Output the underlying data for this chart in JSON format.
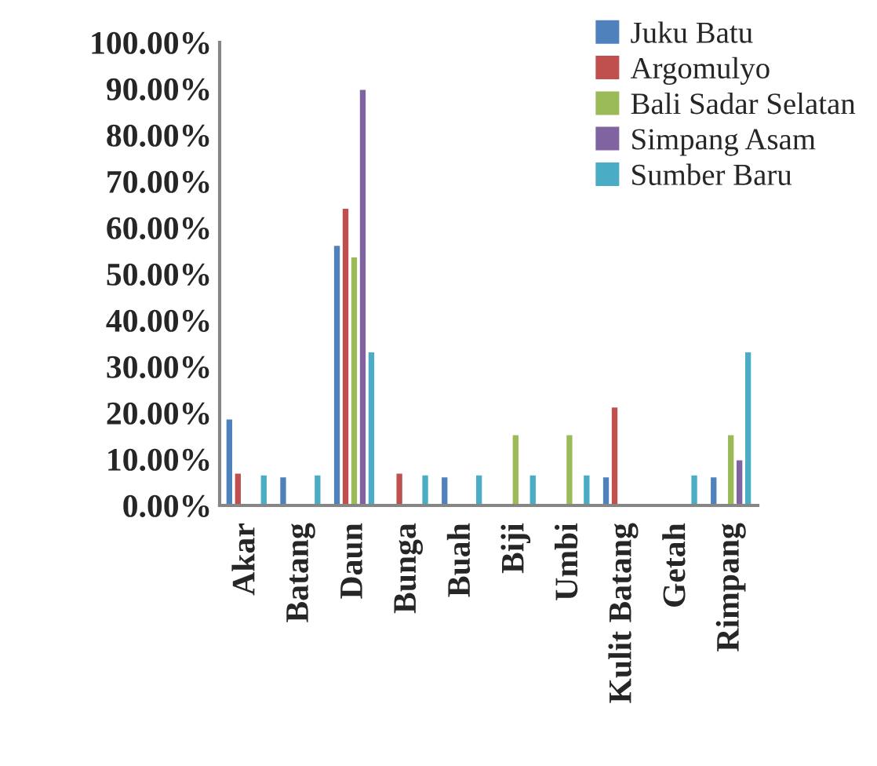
{
  "chart_data": {
    "type": "bar",
    "categories": [
      "Akar",
      "Batang",
      "Daun",
      "Bunga",
      "Buah",
      "Biji",
      "Umbi",
      "Kulit Batang",
      "Getah",
      "Rimpang"
    ],
    "series": [
      {
        "name": "Juku Batu",
        "color": "#4f81bd",
        "values": [
          18.8,
          6.3,
          56.3,
          null,
          6.3,
          null,
          null,
          6.3,
          null,
          6.3
        ]
      },
      {
        "name": "Argomulyo",
        "color": "#c0504d",
        "values": [
          7.1,
          null,
          64.3,
          7.1,
          null,
          null,
          null,
          21.4,
          null,
          null
        ]
      },
      {
        "name": "Bali Sadar Selatan",
        "color": "#9bbb59",
        "values": [
          null,
          null,
          53.8,
          null,
          null,
          15.4,
          15.4,
          null,
          null,
          15.4
        ]
      },
      {
        "name": "Simpang Asam",
        "color": "#8064a2",
        "values": [
          null,
          null,
          90,
          null,
          null,
          null,
          null,
          null,
          null,
          10
        ]
      },
      {
        "name": "Sumber Baru",
        "color": "#4bacc6",
        "values": [
          6.7,
          6.7,
          33.3,
          6.7,
          6.7,
          6.7,
          6.7,
          null,
          6.7,
          33.3
        ]
      }
    ],
    "ylim": [
      0,
      100
    ],
    "yticks": [
      {
        "value": 0,
        "label": "0.00%"
      },
      {
        "value": 10,
        "label": "10.00%"
      },
      {
        "value": 20,
        "label": "20.00%"
      },
      {
        "value": 30,
        "label": "30.00%"
      },
      {
        "value": 40,
        "label": "40.00%"
      },
      {
        "value": 50,
        "label": "50.00%"
      },
      {
        "value": 60,
        "label": "60.00%"
      },
      {
        "value": 70,
        "label": "70.00%"
      },
      {
        "value": 80,
        "label": "80.00%"
      },
      {
        "value": 90,
        "label": "90.00%"
      },
      {
        "value": 100,
        "label": "100.00%"
      }
    ],
    "grid": false,
    "legend": "top right"
  }
}
